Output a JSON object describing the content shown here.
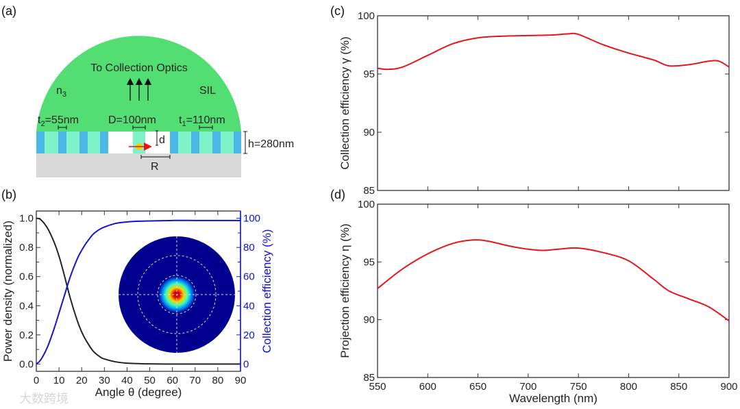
{
  "panel_labels": {
    "a": "(a)",
    "b": "(b)",
    "c": "(c)",
    "d": "(d)"
  },
  "schematic": {
    "title": "To Collection Optics",
    "n3": "n",
    "n3_sub": "3",
    "sil": "SIL",
    "t2": "t",
    "t2_sub": "2",
    "t2_val": "=55nm",
    "D": "D=100nm",
    "t1": "t",
    "t1_sub": "1",
    "t1_val": "=110nm",
    "d": "d",
    "h": "h=280nm",
    "R": "R",
    "colors": {
      "sil": "#52de72",
      "blue_layer": "#4cb8e8",
      "green_layer": "#7ef3c9",
      "substrate": "#d9d9d9",
      "emitter": "#f5d000",
      "dipole": "#e8141b"
    }
  },
  "watermark": "大数跨境",
  "chart_data": [
    {
      "id": "b",
      "type": "line",
      "xlabel": "Angle θ (degree)",
      "ylabel": "Power density (normalized)",
      "ylabel_right": "Collection efficiency (%)",
      "xlim": [
        0,
        90
      ],
      "ylim": [
        -0.05,
        1.05
      ],
      "ylim_right": [
        -5,
        105
      ],
      "xticks": [
        "0",
        "10",
        "20",
        "30",
        "40",
        "50",
        "60",
        "70",
        "80",
        "90"
      ],
      "yticks": [
        "0.0",
        "0.2",
        "0.4",
        "0.6",
        "0.8",
        "1.0"
      ],
      "yticks_right": [
        "0",
        "20",
        "40",
        "60",
        "80",
        "100"
      ],
      "series": [
        {
          "name": "Power density",
          "axis": "left",
          "color": "#222222",
          "x": [
            0,
            2,
            5,
            8,
            10,
            12,
            15,
            18,
            20,
            22,
            25,
            28,
            30,
            35,
            40,
            45,
            50,
            60,
            70,
            80,
            90
          ],
          "y": [
            1.0,
            0.99,
            0.93,
            0.83,
            0.74,
            0.63,
            0.45,
            0.3,
            0.22,
            0.16,
            0.09,
            0.05,
            0.035,
            0.015,
            0.006,
            0.003,
            0.001,
            0,
            0,
            0,
            0
          ]
        },
        {
          "name": "Collection efficiency",
          "axis": "right",
          "color": "#1010d8",
          "x": [
            0,
            2,
            5,
            8,
            10,
            12,
            15,
            18,
            20,
            22,
            25,
            28,
            30,
            35,
            40,
            45,
            50,
            60,
            70,
            80,
            90
          ],
          "y": [
            0,
            3,
            12,
            25,
            35,
            45,
            60,
            72,
            78,
            83,
            89,
            92.5,
            94,
            96.5,
            97.5,
            98,
            98.2,
            98.5,
            98.5,
            98.5,
            98.5
          ]
        }
      ],
      "inset": "far-field intensity map"
    },
    {
      "id": "c",
      "type": "line",
      "xlabel": "",
      "ylabel": "Collection efficiency γ (%)",
      "xlim": [
        550,
        900
      ],
      "ylim": [
        85,
        100
      ],
      "yticks": [
        "85",
        "90",
        "95",
        "100"
      ],
      "series": [
        {
          "name": "γ",
          "color": "#e8141b",
          "x": [
            550,
            560,
            575,
            600,
            625,
            650,
            675,
            700,
            725,
            740,
            750,
            775,
            800,
            825,
            840,
            860,
            880,
            890,
            900
          ],
          "y": [
            95.5,
            95.4,
            95.6,
            96.6,
            97.6,
            98.1,
            98.25,
            98.3,
            98.35,
            98.45,
            98.4,
            97.5,
            96.8,
            96.2,
            95.7,
            95.8,
            96.1,
            96.1,
            95.6
          ]
        }
      ]
    },
    {
      "id": "d",
      "type": "line",
      "xlabel": "Wavelength (nm)",
      "ylabel": "Projection efficiency η (%)",
      "xlim": [
        550,
        900
      ],
      "ylim": [
        85,
        100
      ],
      "xticks": [
        "550",
        "600",
        "650",
        "700",
        "750",
        "800",
        "850",
        "900"
      ],
      "yticks": [
        "85",
        "90",
        "95",
        "100"
      ],
      "series": [
        {
          "name": "η",
          "color": "#e8141b",
          "x": [
            550,
            575,
            600,
            625,
            645,
            660,
            680,
            700,
            715,
            730,
            750,
            775,
            800,
            825,
            840,
            860,
            880,
            900
          ],
          "y": [
            92.7,
            94.4,
            95.7,
            96.6,
            96.9,
            96.8,
            96.4,
            96.1,
            96.0,
            96.1,
            96.2,
            95.8,
            95.1,
            93.5,
            92.5,
            91.8,
            91.1,
            89.9
          ]
        }
      ]
    }
  ]
}
